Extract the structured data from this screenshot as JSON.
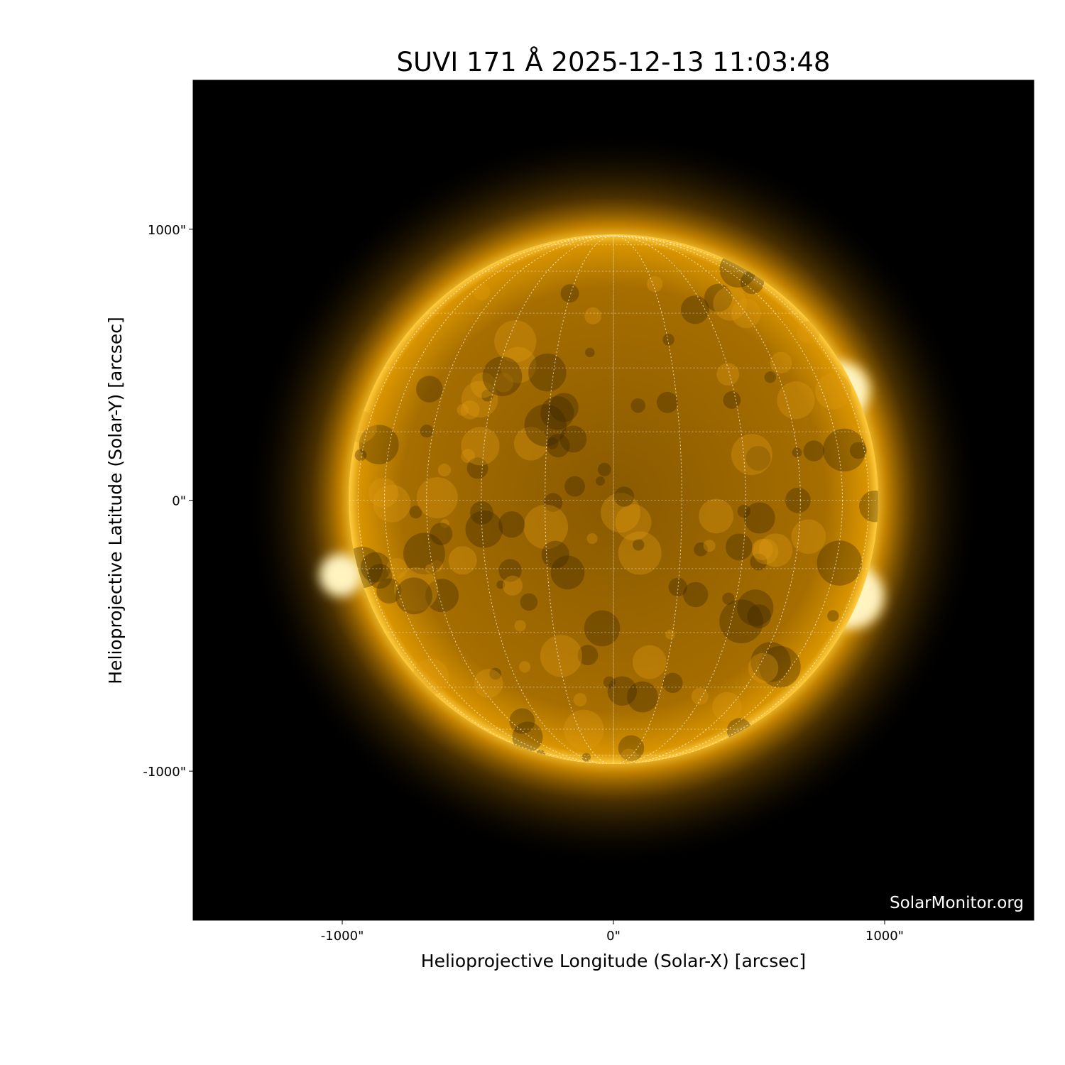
{
  "chart_data": {
    "type": "image",
    "title": "SUVI 171 Å 2025-12-13 11:03:48",
    "instrument": "SUVI",
    "wavelength": "171 Å",
    "date": "2025-12-13 11:03:48",
    "xlabel": "Helioprojective Longitude (Solar-X) [arcsec]",
    "ylabel": "Helioprojective Latitude (Solar-Y) [arcsec]",
    "xlim": [
      -1550,
      1550
    ],
    "ylim": [
      -1550,
      1550
    ],
    "xticks": [
      {
        "value": -1000,
        "label": "-1000\""
      },
      {
        "value": 0,
        "label": "0\""
      },
      {
        "value": 1000,
        "label": "1000\""
      }
    ],
    "yticks": [
      {
        "value": 1000,
        "label": "1000\""
      },
      {
        "value": 0,
        "label": "0\""
      },
      {
        "value": -1000,
        "label": "-1000\""
      }
    ],
    "solar_radius_arcsec": 975,
    "grid": true,
    "grid_spacing_deg": 15,
    "colormap": "goes-rsuvi171 (black-orange-white)",
    "colors": {
      "background": "#000000",
      "disk": "#c98a00",
      "bright": "#fff2c0"
    }
  },
  "watermark": "SolarMonitor.org"
}
